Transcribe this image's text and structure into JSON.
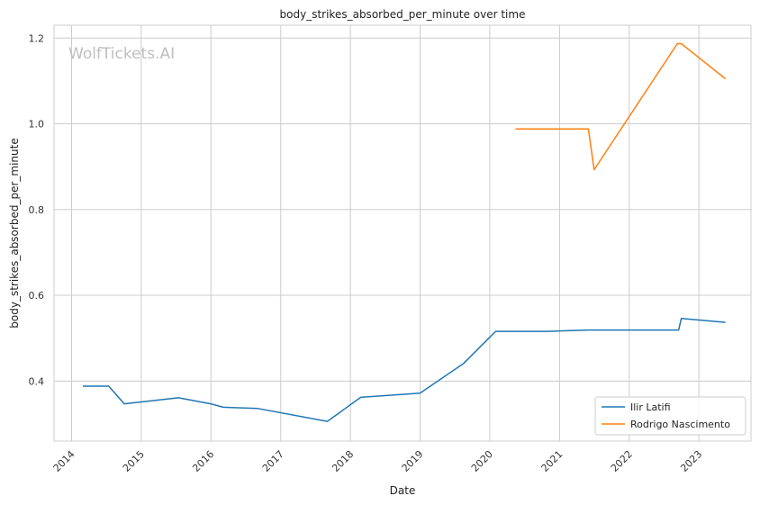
{
  "chart_data": {
    "type": "line",
    "title": "body_strikes_absorbed_per_minute over time",
    "xlabel": "Date",
    "ylabel": "body_strikes_absorbed_per_minute",
    "watermark": "WolfTickets.AI",
    "grid": true,
    "legend_position": "bottom-right",
    "xlim": [
      "2013-10-01",
      "2023-10-01"
    ],
    "ylim": [
      0.26,
      1.23
    ],
    "x_ticks": [
      "2014",
      "2015",
      "2016",
      "2017",
      "2018",
      "2019",
      "2020",
      "2021",
      "2022",
      "2023"
    ],
    "y_ticks": [
      "0.4",
      "0.6",
      "0.8",
      "1.0",
      "1.2"
    ],
    "series": [
      {
        "name": "Ilir Latifi",
        "color": "#1f77b4",
        "points": [
          [
            "2014-03-01",
            0.388
          ],
          [
            "2014-07-15",
            0.388
          ],
          [
            "2014-10-04",
            0.347
          ],
          [
            "2015-07-15",
            0.361
          ],
          [
            "2016-01-01",
            0.347
          ],
          [
            "2016-03-05",
            0.339
          ],
          [
            "2016-09-03",
            0.336
          ],
          [
            "2017-09-02",
            0.306
          ],
          [
            "2018-02-24",
            0.362
          ],
          [
            "2019-01-01",
            0.372
          ],
          [
            "2019-08-17",
            0.441
          ],
          [
            "2020-02-01",
            0.516
          ],
          [
            "2020-11-01",
            0.516
          ],
          [
            "2021-06-01",
            0.519
          ],
          [
            "2022-09-17",
            0.519
          ],
          [
            "2022-10-01",
            0.546
          ],
          [
            "2023-05-20",
            0.537
          ]
        ]
      },
      {
        "name": "Rodrigo Nascimento",
        "color": "#ff7f0e",
        "points": [
          [
            "2020-05-15",
            0.988
          ],
          [
            "2021-06-01",
            0.988
          ],
          [
            "2021-07-01",
            0.893
          ],
          [
            "2022-09-10",
            1.187
          ],
          [
            "2022-10-01",
            1.187
          ],
          [
            "2023-05-20",
            1.105
          ]
        ]
      }
    ]
  }
}
